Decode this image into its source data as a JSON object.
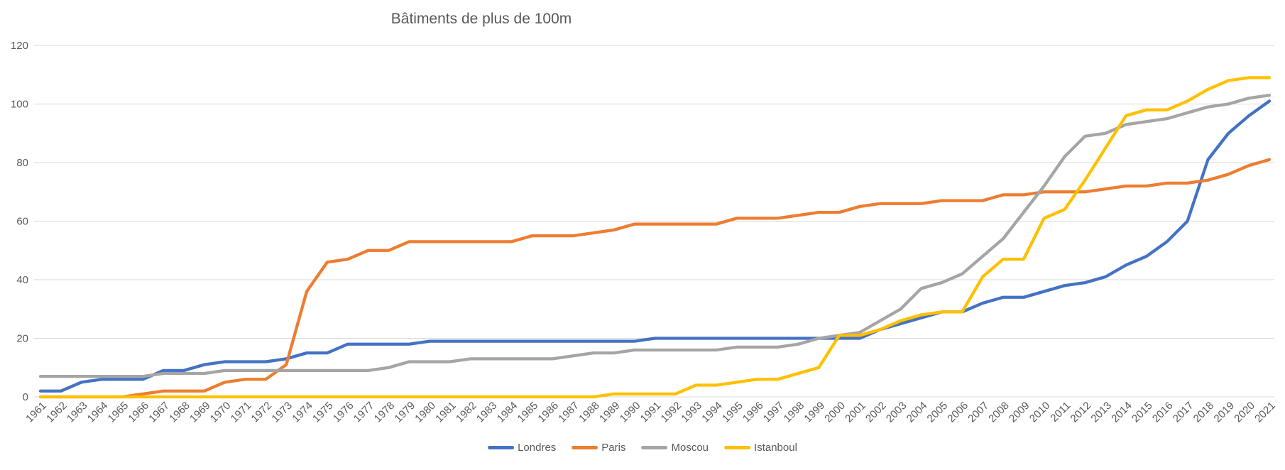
{
  "title": "Bâtiments de plus de 100m",
  "chart_data": {
    "type": "line",
    "title": "Bâtiments de plus de 100m",
    "xlabel": "",
    "ylabel": "",
    "ylim": [
      0,
      120
    ],
    "yticks": [
      0,
      20,
      40,
      60,
      80,
      100,
      120
    ],
    "grid": true,
    "legend_position": "bottom",
    "axis_text_color": "#595959",
    "gridline_color": "#D9D9D9",
    "x": [
      1961,
      1962,
      1963,
      1964,
      1965,
      1966,
      1967,
      1968,
      1969,
      1970,
      1971,
      1972,
      1973,
      1974,
      1975,
      1976,
      1977,
      1978,
      1979,
      1980,
      1981,
      1982,
      1983,
      1984,
      1985,
      1986,
      1987,
      1988,
      1989,
      1990,
      1991,
      1992,
      1993,
      1994,
      1995,
      1996,
      1997,
      1998,
      1999,
      2000,
      2001,
      2002,
      2003,
      2004,
      2005,
      2006,
      2007,
      2008,
      2009,
      2010,
      2011,
      2012,
      2013,
      2014,
      2015,
      2016,
      2017,
      2018,
      2019,
      2020,
      2021
    ],
    "series": [
      {
        "name": "Londres",
        "color": "#4472C4",
        "values": [
          2,
          2,
          5,
          6,
          6,
          6,
          9,
          9,
          11,
          12,
          12,
          12,
          13,
          15,
          15,
          18,
          18,
          18,
          18,
          19,
          19,
          19,
          19,
          19,
          19,
          19,
          19,
          19,
          19,
          19,
          20,
          20,
          20,
          20,
          20,
          20,
          20,
          20,
          20,
          20,
          20,
          23,
          25,
          27,
          29,
          29,
          32,
          34,
          34,
          36,
          38,
          39,
          41,
          45,
          48,
          53,
          60,
          81,
          90,
          96,
          101
        ]
      },
      {
        "name": "Paris",
        "color": "#ED7D31",
        "values": [
          0,
          0,
          0,
          0,
          0,
          1,
          2,
          2,
          2,
          5,
          6,
          6,
          11,
          36,
          46,
          47,
          50,
          50,
          53,
          53,
          53,
          53,
          53,
          53,
          55,
          55,
          55,
          56,
          57,
          59,
          59,
          59,
          59,
          59,
          61,
          61,
          61,
          62,
          63,
          63,
          65,
          66,
          66,
          66,
          67,
          67,
          67,
          69,
          69,
          70,
          70,
          70,
          71,
          72,
          72,
          73,
          73,
          74,
          76,
          79,
          81
        ]
      },
      {
        "name": "Moscou",
        "color": "#A5A5A5",
        "values": [
          7,
          7,
          7,
          7,
          7,
          7,
          8,
          8,
          8,
          9,
          9,
          9,
          9,
          9,
          9,
          9,
          9,
          10,
          12,
          12,
          12,
          13,
          13,
          13,
          13,
          13,
          14,
          15,
          15,
          16,
          16,
          16,
          16,
          16,
          17,
          17,
          17,
          18,
          20,
          21,
          22,
          26,
          30,
          37,
          39,
          42,
          48,
          54,
          63,
          72,
          82,
          89,
          90,
          93,
          94,
          95,
          97,
          99,
          100,
          102,
          103
        ]
      },
      {
        "name": "Istanboul",
        "color": "#FFC000",
        "values": [
          0,
          0,
          0,
          0,
          0,
          0,
          0,
          0,
          0,
          0,
          0,
          0,
          0,
          0,
          0,
          0,
          0,
          0,
          0,
          0,
          0,
          0,
          0,
          0,
          0,
          0,
          0,
          0,
          1,
          1,
          1,
          1,
          4,
          4,
          5,
          6,
          6,
          8,
          10,
          21,
          21,
          23,
          26,
          28,
          29,
          29,
          41,
          47,
          47,
          61,
          64,
          74,
          85,
          96,
          98,
          98,
          101,
          105,
          108,
          109,
          109
        ]
      }
    ]
  }
}
